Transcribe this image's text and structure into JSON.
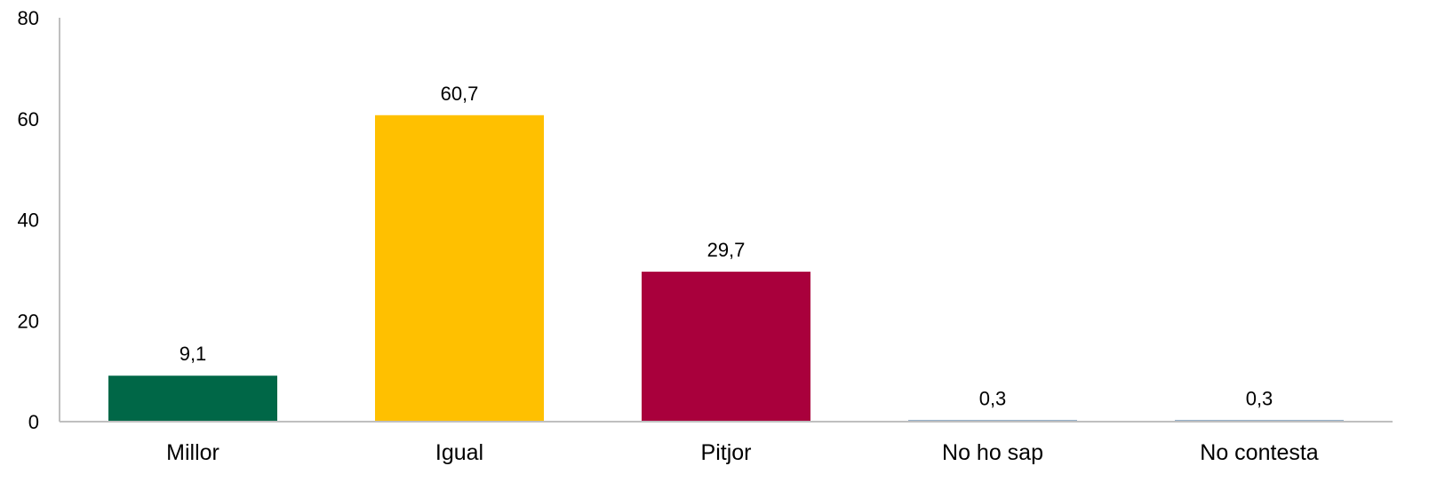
{
  "chart_data": {
    "type": "bar",
    "title": "",
    "xlabel": "",
    "ylabel": "",
    "categories": [
      "Millor",
      "Igual",
      "Pitjor",
      "No ho sap",
      "No contesta"
    ],
    "values": [
      9.1,
      60.7,
      29.7,
      0.3,
      0.3
    ],
    "data_labels": [
      "9,1",
      "60,7",
      "29,7",
      "0,3",
      "0,3"
    ],
    "colors": [
      "#006747",
      "#ffc000",
      "#a9003c",
      "#6b8fb3",
      "#6b8fb3"
    ],
    "ylim": [
      0,
      80
    ],
    "y_ticks": [
      0,
      20,
      40,
      60,
      80
    ],
    "grid": false,
    "legend": "none"
  }
}
